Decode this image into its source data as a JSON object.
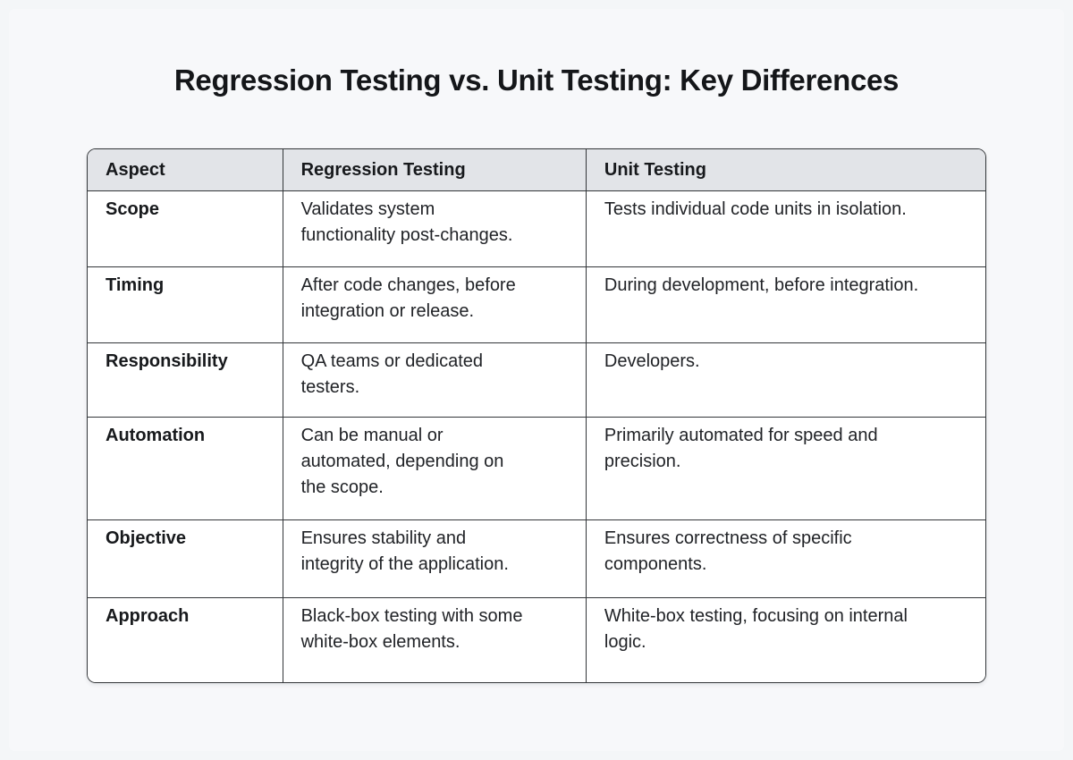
{
  "page": {
    "title": "Regression Testing vs. Unit Testing: Key Differences"
  },
  "table": {
    "headers": [
      "Aspect",
      "Regression Testing",
      "Unit Testing"
    ],
    "rows": [
      {
        "aspect": "Scope",
        "regression": "Validates system functionality post-changes.",
        "unit": "Tests individual code units in isolation."
      },
      {
        "aspect": "Timing",
        "regression": "After code changes, before integration or release.",
        "unit": "During development, before integration."
      },
      {
        "aspect": "Responsibility",
        "regression": "QA teams or dedicated testers.",
        "unit": "Developers."
      },
      {
        "aspect": "Automation",
        "regression": "Can be manual or automated, depending on the scope.",
        "unit": "Primarily automated for speed and precision."
      },
      {
        "aspect": "Objective",
        "regression": "Ensures stability and integrity of the application.",
        "unit": "Ensures correctness of specific components."
      },
      {
        "aspect": "Approach",
        "regression": "Black-box testing with some white-box elements.",
        "unit": "White-box testing, focusing on internal logic."
      }
    ]
  },
  "colors": {
    "page_bg": "#f4f6f8",
    "header_bg": "#e2e4e8",
    "border": "#333639",
    "cell_bg": "#ffffff",
    "title_color": "#141619"
  }
}
